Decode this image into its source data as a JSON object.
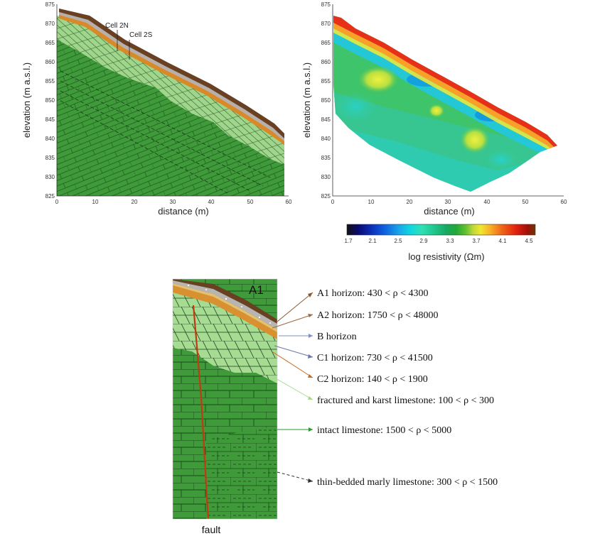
{
  "geology_plot": {
    "ylabel": "elevation (m a.s.l.)",
    "xlabel": "distance (m)",
    "y_ticks": [
      "825",
      "830",
      "835",
      "840",
      "845",
      "850",
      "855",
      "860",
      "865",
      "870",
      "875"
    ],
    "x_ticks": [
      "0",
      "10",
      "20",
      "30",
      "40",
      "50",
      "60"
    ],
    "cell_labels": [
      "Cell 2N",
      "Cell 2S"
    ]
  },
  "resistivity_plot": {
    "ylabel": "elevation (m a.s.l.)",
    "xlabel": "distance (m)",
    "y_ticks": [
      "825",
      "830",
      "835",
      "840",
      "845",
      "850",
      "855",
      "860",
      "865",
      "870",
      "875"
    ],
    "x_ticks": [
      "0",
      "10",
      "20",
      "30",
      "40",
      "50",
      "60"
    ]
  },
  "colorbar": {
    "ticks": [
      "1.7",
      "2.1",
      "2.5",
      "2.9",
      "3.3",
      "3.7",
      "4.1",
      "4.5"
    ],
    "label": "log resistivity (Ωm)",
    "colors": [
      "#111111",
      "#0a0a70",
      "#0a2ab0",
      "#1060e0",
      "#1aa8e8",
      "#10d8e0",
      "#30e0b0",
      "#20c890",
      "#18a860",
      "#22a838",
      "#60c030",
      "#c0d838",
      "#f0e830",
      "#f8b028",
      "#f06818",
      "#e02010",
      "#a01008",
      "#6a3808"
    ]
  },
  "detail": {
    "title": "A1",
    "fault_label": "fault",
    "legend": [
      {
        "text": "A1 horizon:  430 < ρ < 4300",
        "color": "#8a5a30"
      },
      {
        "text": "A2 horizon:  1750 < ρ < 48000",
        "color": "#a0683a"
      },
      {
        "text": "B horizon",
        "color": "#8090c0"
      },
      {
        "text": "C1 horizon:  730 < ρ < 41500",
        "color": "#6a78a8"
      },
      {
        "text": "C2 horizon:  140 < ρ < 1900",
        "color": "#c86a20"
      },
      {
        "text": "fractured and karst limestone:  100 < ρ < 300",
        "color": "#a8d890"
      },
      {
        "text": "intact limestone:  1500 < ρ < 5000",
        "color": "#2a9a30"
      },
      {
        "text": "thin-bedded marly limestone:  300 < ρ < 1500",
        "color": "#333333"
      }
    ]
  }
}
